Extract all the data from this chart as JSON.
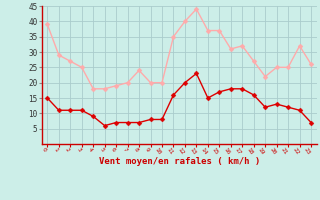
{
  "hours": [
    0,
    1,
    2,
    3,
    4,
    5,
    6,
    7,
    8,
    9,
    10,
    11,
    12,
    13,
    14,
    15,
    16,
    17,
    18,
    19,
    20,
    21,
    22,
    23
  ],
  "vent_moyen": [
    15,
    11,
    11,
    11,
    9,
    6,
    7,
    7,
    7,
    8,
    8,
    16,
    20,
    23,
    15,
    17,
    18,
    18,
    16,
    12,
    13,
    12,
    11,
    7
  ],
  "rafales": [
    39,
    29,
    27,
    25,
    18,
    18,
    19,
    20,
    24,
    20,
    20,
    35,
    40,
    44,
    37,
    37,
    31,
    32,
    27,
    22,
    25,
    25,
    32,
    26
  ],
  "color_moyen": "#dd0000",
  "color_rafales": "#ffaaaa",
  "bg_color": "#cceee8",
  "grid_color": "#aacccc",
  "xlabel": "Vent moyen/en rafales ( km/h )",
  "xlabel_color": "#cc0000",
  "tick_color": "#cc0000",
  "axis_color": "#cc0000",
  "ylim": [
    0,
    45
  ],
  "yticks": [
    5,
    10,
    15,
    20,
    25,
    30,
    35,
    40,
    45
  ],
  "marker_size": 2.5,
  "line_width": 1.0
}
